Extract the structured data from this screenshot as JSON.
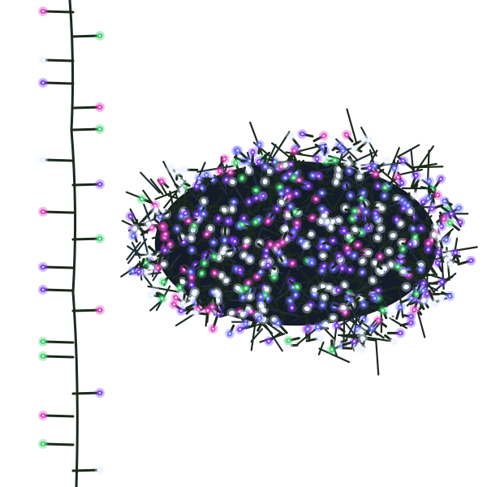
{
  "image": {
    "background": "#ffffff",
    "wire_color": "#1c2a1c",
    "led_colors": {
      "pink": "#e040c0",
      "green": "#40d070",
      "purple": "#7a3cf0",
      "white": "#e8f0ff",
      "blue": "#6a6cff"
    }
  }
}
